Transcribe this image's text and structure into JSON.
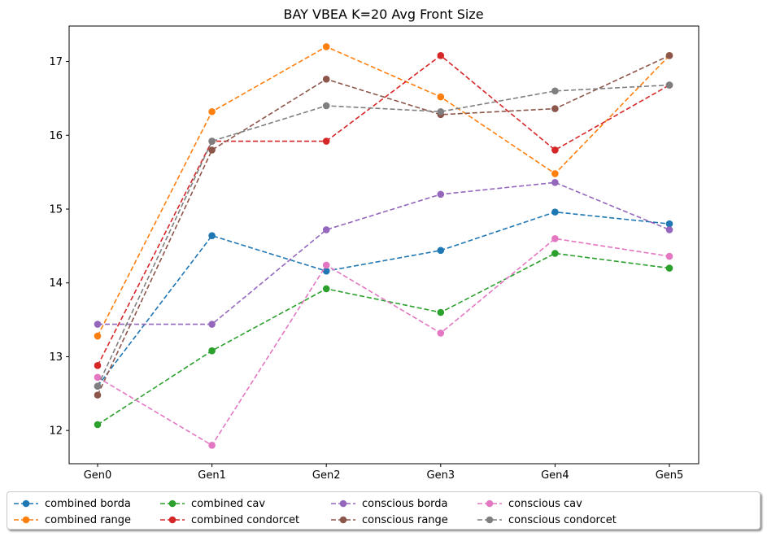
{
  "chart_data": {
    "type": "line",
    "title": "BAY VBEA K=20 Avg Front Size",
    "xlabel": "",
    "ylabel": "",
    "categories": [
      "Gen0",
      "Gen1",
      "Gen2",
      "Gen3",
      "Gen4",
      "Gen5"
    ],
    "ylim": [
      11.55,
      17.48
    ],
    "yticks": [
      12,
      13,
      14,
      15,
      16,
      17
    ],
    "grid": false,
    "legend_position": "bottom-center",
    "line_style": "dashed",
    "marker": "circle",
    "series": [
      {
        "name": "combined borda",
        "color": "#1f77b4",
        "values": [
          12.6,
          14.64,
          14.16,
          14.44,
          14.96,
          14.8
        ]
      },
      {
        "name": "combined range",
        "color": "#ff7f0e",
        "values": [
          13.28,
          16.32,
          17.2,
          16.52,
          15.48,
          17.08
        ]
      },
      {
        "name": "combined cav",
        "color": "#2ca02c",
        "values": [
          12.08,
          13.08,
          13.92,
          13.6,
          14.4,
          14.2
        ]
      },
      {
        "name": "combined condorcet",
        "color": "#d62728",
        "values": [
          12.88,
          15.92,
          15.92,
          17.08,
          15.8,
          16.68
        ]
      },
      {
        "name": "conscious borda",
        "color": "#9467bd",
        "values": [
          13.44,
          13.44,
          14.72,
          15.2,
          15.36,
          14.72
        ]
      },
      {
        "name": "conscious range",
        "color": "#8c564b",
        "values": [
          12.48,
          15.8,
          16.76,
          16.28,
          16.36,
          17.08
        ]
      },
      {
        "name": "conscious cav",
        "color": "#e377c2",
        "values": [
          12.72,
          11.8,
          14.24,
          13.32,
          14.6,
          14.36
        ]
      },
      {
        "name": "conscious condorcet",
        "color": "#7f7f7f",
        "values": [
          12.6,
          15.92,
          16.4,
          16.32,
          16.6,
          16.68
        ]
      }
    ]
  }
}
